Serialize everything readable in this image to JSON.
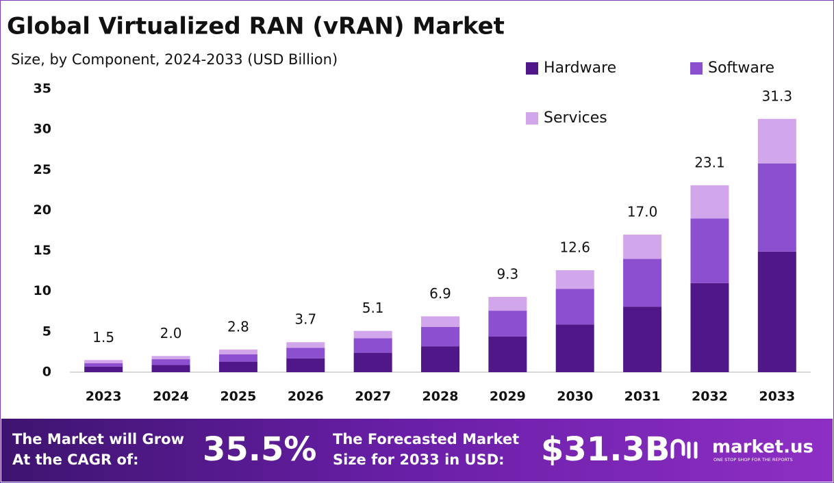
{
  "chart_data": {
    "type": "stacked_bar",
    "title": "Global Virtualized RAN (vRAN) Market",
    "subtitle": "Size, by Component, 2024-2033 (USD Billion)",
    "categories": [
      "2023",
      "2024",
      "2025",
      "2026",
      "2027",
      "2028",
      "2029",
      "2030",
      "2031",
      "2032",
      "2033"
    ],
    "series": [
      {
        "name": "Hardware",
        "color": "#4f1787",
        "values": [
          0.7,
          0.9,
          1.3,
          1.7,
          2.4,
          3.2,
          4.4,
          5.9,
          8.1,
          11.0,
          14.9
        ]
      },
      {
        "name": "Software",
        "color": "#8b4fcf",
        "values": [
          0.4,
          0.7,
          0.9,
          1.3,
          1.8,
          2.4,
          3.2,
          4.4,
          5.9,
          8.0,
          10.9
        ]
      },
      {
        "name": "Services",
        "color": "#d2a6ea",
        "values": [
          0.4,
          0.4,
          0.6,
          0.7,
          0.9,
          1.3,
          1.7,
          2.3,
          3.0,
          4.1,
          5.5
        ]
      }
    ],
    "totals": {
      "values": [
        1.5,
        2,
        2.8,
        3.7,
        5.1,
        6.9,
        9.3,
        12.6,
        17,
        23.1,
        31.3
      ],
      "value_labels": [
        "1.5",
        "2.0",
        "2.8",
        "3.7",
        "5.1",
        "6.9",
        "9.3",
        "12.6",
        "17.0",
        "23.1",
        "31.3"
      ]
    },
    "ylim": [
      0,
      35
    ],
    "yticks": [
      0,
      5,
      10,
      15,
      20,
      25,
      30,
      35
    ],
    "grid": false,
    "legend": "top-right"
  },
  "footer": {
    "cagr_text": [
      "The Market will Grow",
      "At the CAGR of:"
    ],
    "cagr_value": "35.5%",
    "forecast_text": [
      "The Forecasted Market",
      "Size for 2033 in USD:"
    ],
    "forecast_value": "$31.3B",
    "brand": "market.us",
    "tagline": "ONE STOP SHOP FOR THE REPORTS"
  }
}
